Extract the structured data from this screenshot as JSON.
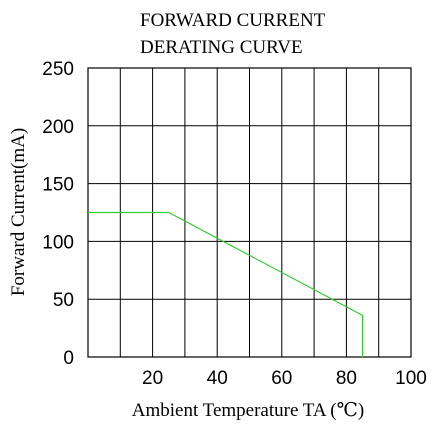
{
  "chart_data": {
    "type": "line",
    "title_lines": [
      "FORWARD CURRENT",
      "DERATING CURVE"
    ],
    "xlabel": "Ambient Temperature TA (℃)",
    "ylabel": "Forward Current(mA)",
    "xlim": [
      0,
      100
    ],
    "ylim": [
      0,
      250
    ],
    "x_ticks": [
      20,
      40,
      60,
      80,
      100
    ],
    "y_ticks": [
      0,
      50,
      100,
      150,
      200,
      250
    ],
    "x_tick_labels": [
      "20",
      "40",
      "60",
      "80",
      "100"
    ],
    "y_tick_labels": [
      "0",
      "50",
      "100",
      "150",
      "200",
      "250"
    ],
    "x_grid": [
      0,
      10,
      20,
      30,
      40,
      50,
      60,
      70,
      80,
      90,
      100
    ],
    "y_grid": [
      0,
      50,
      100,
      150,
      200,
      250
    ],
    "grid": true,
    "series": [
      {
        "color": "#33cc33",
        "x": [
          0,
          25,
          85,
          85
        ],
        "y": [
          125,
          125,
          36,
          0
        ]
      }
    ]
  }
}
